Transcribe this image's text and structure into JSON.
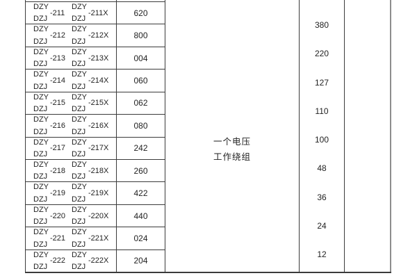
{
  "table": {
    "series_labels": {
      "top": "DZY",
      "bottom": "DZJ"
    },
    "rows": [
      {
        "model": "-211",
        "model_x": "-211X",
        "code": "620"
      },
      {
        "model": "-212",
        "model_x": "-212X",
        "code": "800"
      },
      {
        "model": "-213",
        "model_x": "-213X",
        "code": "004"
      },
      {
        "model": "-214",
        "model_x": "-214X",
        "code": "060"
      },
      {
        "model": "-215",
        "model_x": "-215X",
        "code": "062"
      },
      {
        "model": "-216",
        "model_x": "-216X",
        "code": "080"
      },
      {
        "model": "-217",
        "model_x": "-217X",
        "code": "242"
      },
      {
        "model": "-218",
        "model_x": "-218X",
        "code": "260"
      },
      {
        "model": "-219",
        "model_x": "-219X",
        "code": "422"
      },
      {
        "model": "-220",
        "model_x": "-220X",
        "code": "440"
      },
      {
        "model": "-221",
        "model_x": "-221X",
        "code": "024"
      },
      {
        "model": "-222",
        "model_x": "-222X",
        "code": "204"
      }
    ],
    "winding_note": {
      "line1": "一个电压",
      "line2": "工作绕组"
    },
    "voltages": [
      "380",
      "220",
      "127",
      "110",
      "100",
      "48",
      "36",
      "24",
      "12"
    ]
  },
  "colors": {
    "grid": "#3a3a3a",
    "outer_right": "#8d8d8d",
    "text": "#1f1f1f",
    "background": "#ffffff"
  }
}
